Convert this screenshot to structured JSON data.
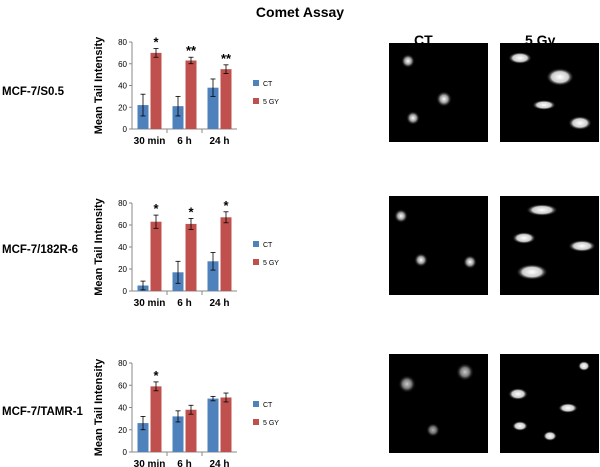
{
  "title": "Comet Assay",
  "image_headers": [
    "CT",
    "5 Gy"
  ],
  "chart_data": [
    {
      "type": "bar",
      "row_label": "MCF-7/S0.5",
      "ylabel": "Mean Tail Intensity",
      "categories": [
        "30 min",
        "6 h",
        "24 h"
      ],
      "ylim": [
        0,
        80
      ],
      "yticks": [
        0,
        20,
        40,
        60,
        80
      ],
      "series": [
        {
          "name": "CT",
          "color": "#4f81bd",
          "values": [
            22,
            21,
            38
          ],
          "errors": [
            10,
            9,
            8
          ]
        },
        {
          "name": "5 GY",
          "color": "#c0504d",
          "values": [
            70,
            63,
            55
          ],
          "errors": [
            4,
            3,
            4
          ]
        }
      ],
      "annotations": [
        "*",
        "**",
        "**"
      ],
      "legend": "right"
    },
    {
      "type": "bar",
      "row_label": "MCF-7/182R-6",
      "ylabel": "Mean Tail Intensity",
      "categories": [
        "30 min",
        "6 h",
        "24 h"
      ],
      "ylim": [
        0,
        80
      ],
      "yticks": [
        0,
        20,
        40,
        60,
        80
      ],
      "series": [
        {
          "name": "CT",
          "color": "#4f81bd",
          "values": [
            5,
            17,
            27
          ],
          "errors": [
            4,
            10,
            8
          ]
        },
        {
          "name": "5 GY",
          "color": "#c0504d",
          "values": [
            63,
            61,
            67
          ],
          "errors": [
            6,
            5,
            5
          ]
        }
      ],
      "annotations": [
        "*",
        "*",
        "*"
      ],
      "legend": "right"
    },
    {
      "type": "bar",
      "row_label": "MCF-7/TAMR-1",
      "ylabel": "Mean Tail Intensity",
      "categories": [
        "30 min",
        "6 h",
        "24 h"
      ],
      "ylim": [
        0,
        80
      ],
      "yticks": [
        0,
        20,
        40,
        60,
        80
      ],
      "series": [
        {
          "name": "CT",
          "color": "#4f81bd",
          "values": [
            26,
            32,
            48
          ],
          "errors": [
            6,
            5,
            2
          ]
        },
        {
          "name": "5 GY",
          "color": "#c0504d",
          "values": [
            59,
            38,
            49
          ],
          "errors": [
            4,
            4,
            4
          ]
        }
      ],
      "annotations": [
        "*",
        "",
        ""
      ],
      "legend": "right"
    }
  ]
}
